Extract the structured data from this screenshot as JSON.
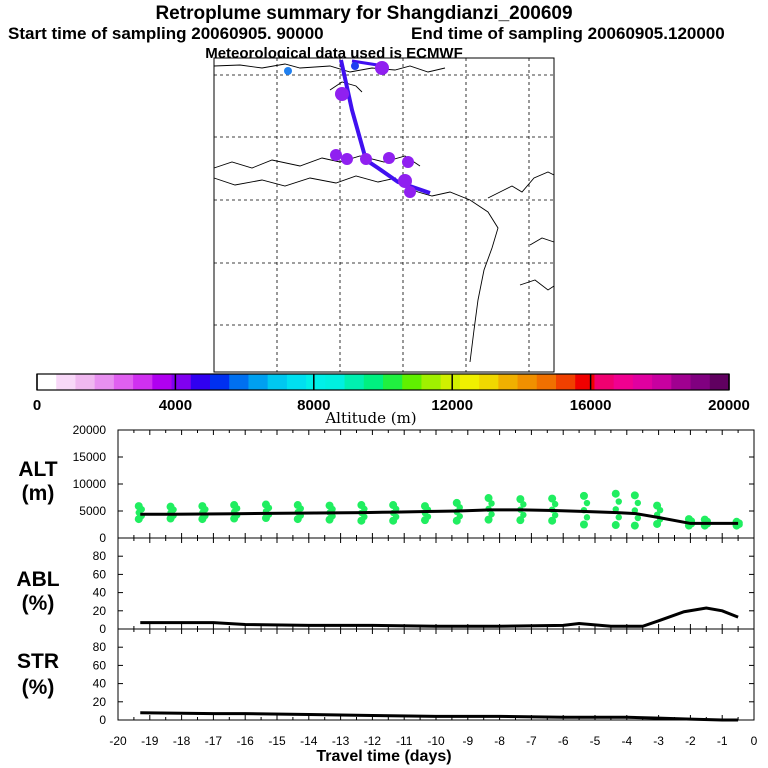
{
  "header": {
    "title": "Retroplume summary for Shangdianzi_200609",
    "start_label": "Start time of sampling 20060905. 90000",
    "end_label": "End time of sampling 20060905.120000",
    "met_label": "Meteorological data used is ECMWF"
  },
  "colorbar": {
    "title": "Altitude (m)",
    "ticks": [
      "0",
      "4000",
      "8000",
      "12000",
      "16000",
      "20000"
    ],
    "colors": [
      "#ffffff",
      "#f8d8f8",
      "#f0b8f0",
      "#e890f0",
      "#e060f0",
      "#d030f0",
      "#b000f0",
      "#8000f0",
      "#3000f0",
      "#0030f0",
      "#0070f0",
      "#00a0f0",
      "#00c8f0",
      "#00e0f0",
      "#00f0e8",
      "#00f0e0",
      "#00f0b0",
      "#00f080",
      "#20f040",
      "#60f000",
      "#a0f000",
      "#d0f000",
      "#f0f000",
      "#f0d800",
      "#f0b000",
      "#f09000",
      "#f07000",
      "#f04000",
      "#f00000",
      "#f00070",
      "#f00090",
      "#e000a0",
      "#c800a0",
      "#a00090",
      "#800080",
      "#600060"
    ]
  },
  "map": {
    "plume_color": "#9020f0",
    "line_color": "#4010f0"
  },
  "chart_data": [
    {
      "type": "scatter",
      "panel": "ALT",
      "ylabel": "ALT",
      "yunit": "(m)",
      "ylim": [
        0,
        20000
      ],
      "yticks": [
        "0",
        "5000",
        "10000",
        "15000",
        "20000"
      ],
      "xlim": [
        -20,
        0
      ],
      "points_color": "#20ee60",
      "x": [
        -19.3,
        -18.3,
        -17.3,
        -16.3,
        -15.3,
        -14.3,
        -13.3,
        -12.3,
        -11.3,
        -10.3,
        -9.3,
        -8.3,
        -7.3,
        -6.3,
        -5.3,
        -4.3,
        -3.7,
        -3.0,
        -2.0,
        -1.5,
        -0.5
      ],
      "series": [
        {
          "name": "mean",
          "values": [
            4400,
            4400,
            4450,
            4500,
            4550,
            4600,
            4650,
            4700,
            4800,
            4900,
            5000,
            5200,
            5200,
            5100,
            4900,
            4700,
            4500,
            3800,
            2700,
            2700,
            2700
          ]
        },
        {
          "name": "upper",
          "values": [
            5900,
            5800,
            5900,
            6100,
            6200,
            6100,
            6000,
            6100,
            6100,
            5900,
            6500,
            7400,
            7200,
            7300,
            7800,
            8200,
            7900,
            6000,
            3500,
            3400,
            3000
          ]
        },
        {
          "name": "lower",
          "values": [
            3500,
            3600,
            3500,
            3600,
            3700,
            3500,
            3400,
            3200,
            3200,
            3300,
            3200,
            3400,
            3300,
            3200,
            2500,
            2400,
            2300,
            2600,
            2300,
            2300,
            2300
          ]
        }
      ]
    },
    {
      "type": "line",
      "panel": "ABL",
      "ylabel": "ABL",
      "yunit": "(%)",
      "ylim": [
        0,
        100
      ],
      "yticks": [
        "0",
        "20",
        "40",
        "60",
        "80"
      ],
      "x": [
        -19.3,
        -17,
        -16,
        -14,
        -12,
        -10,
        -8,
        -6,
        -5.5,
        -4.5,
        -3.5,
        -3.0,
        -2.2,
        -1.5,
        -1.0,
        -0.5
      ],
      "values": [
        7,
        7,
        5,
        4,
        4,
        3,
        3,
        4,
        6,
        3,
        3,
        9,
        19,
        23,
        20,
        13
      ]
    },
    {
      "type": "line",
      "panel": "STR",
      "ylabel": "STR",
      "yunit": "(%)",
      "ylim": [
        0,
        100
      ],
      "yticks": [
        "0",
        "20",
        "40",
        "60",
        "80"
      ],
      "x": [
        -19.3,
        -17,
        -16,
        -14,
        -12,
        -10,
        -8,
        -6,
        -4,
        -3,
        -2,
        -1,
        -0.5
      ],
      "values": [
        8,
        7,
        7,
        6,
        5,
        4,
        4,
        3,
        3,
        2,
        1,
        0,
        0
      ]
    }
  ],
  "xaxis": {
    "label": "Travel time (days)",
    "ticks": [
      "-20",
      "-19",
      "-18",
      "-17",
      "-16",
      "-15",
      "-14",
      "-13",
      "-12",
      "-11",
      "-10",
      "-9",
      "-8",
      "-7",
      "-6",
      "-5",
      "-4",
      "-3",
      "-2",
      "-1",
      "0"
    ]
  }
}
